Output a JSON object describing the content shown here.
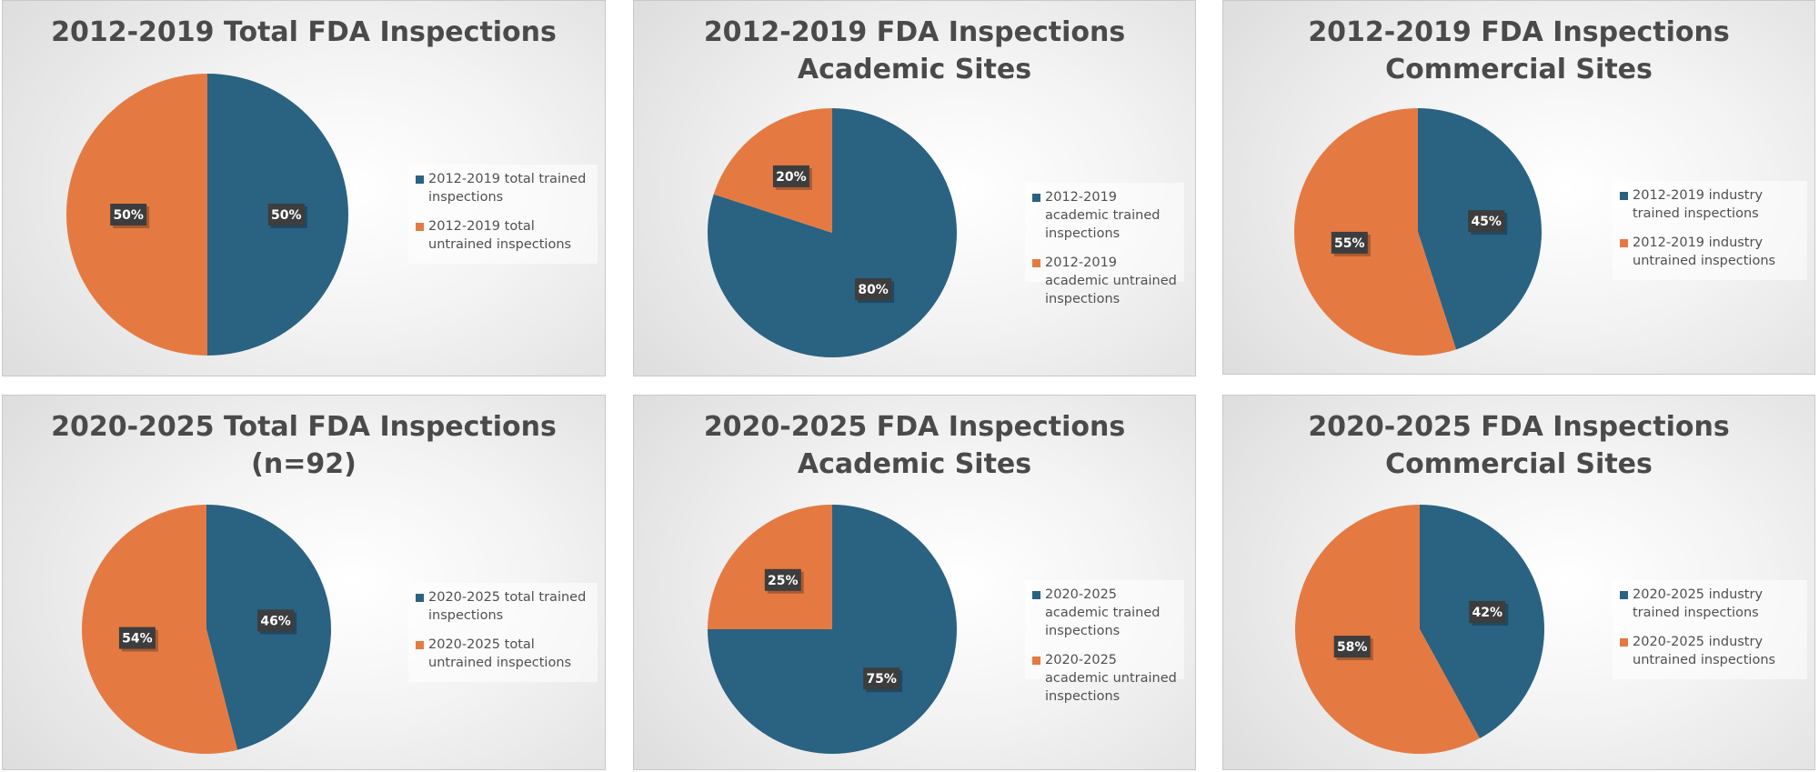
{
  "colors": {
    "trained": "#2a6282",
    "untrained": "#e47a42",
    "label_box": "#3d3d3d",
    "label_text": "#ffffff",
    "title": "#4a4a4a"
  },
  "chart_data": [
    {
      "type": "pie",
      "title": "2012-2019 Total FDA Inspections",
      "slices": [
        {
          "label": "2012-2019 total trained inspections",
          "value": 50,
          "data_label": "50%",
          "color": "#2a6282"
        },
        {
          "label": "2012-2019 total untrained inspections",
          "value": 50,
          "data_label": "50%",
          "color": "#e47a42"
        }
      ],
      "legend_position": "right"
    },
    {
      "type": "pie",
      "title": "2012-2019 FDA Inspections\nAcademic Sites",
      "slices": [
        {
          "label": "2012-2019 academic trained inspections",
          "value": 80,
          "data_label": "80%",
          "color": "#2a6282"
        },
        {
          "label": "2012-2019 academic untrained inspections",
          "value": 20,
          "data_label": "20%",
          "color": "#e47a42"
        }
      ],
      "legend_position": "right"
    },
    {
      "type": "pie",
      "title": "2012-2019 FDA Inspections\nCommercial Sites",
      "slices": [
        {
          "label": "2012-2019 industry trained inspections",
          "value": 45,
          "data_label": "45%",
          "color": "#2a6282"
        },
        {
          "label": "2012-2019 industry untrained inspections",
          "value": 55,
          "data_label": "55%",
          "color": "#e47a42"
        }
      ],
      "legend_position": "right"
    },
    {
      "type": "pie",
      "title": "2020-2025 Total FDA Inspections\n(n=92)",
      "slices": [
        {
          "label": "2020-2025 total trained inspections",
          "value": 46,
          "data_label": "46%",
          "color": "#2a6282"
        },
        {
          "label": "2020-2025 total untrained inspections",
          "value": 54,
          "data_label": "54%",
          "color": "#e47a42"
        }
      ],
      "legend_position": "right"
    },
    {
      "type": "pie",
      "title": "2020-2025 FDA Inspections\nAcademic Sites",
      "slices": [
        {
          "label": "2020-2025 academic trained inspections",
          "value": 75,
          "data_label": "75%",
          "color": "#2a6282"
        },
        {
          "label": "2020-2025 academic untrained inspections",
          "value": 25,
          "data_label": "25%",
          "color": "#e47a42"
        }
      ],
      "legend_position": "right"
    },
    {
      "type": "pie",
      "title": "2020-2025 FDA Inspections\nCommercial Sites",
      "slices": [
        {
          "label": "2020-2025 industry trained inspections",
          "value": 42,
          "data_label": "42%",
          "color": "#2a6282"
        },
        {
          "label": "2020-2025 industry untrained inspections",
          "value": 58,
          "data_label": "58%",
          "color": "#e47a42"
        }
      ],
      "legend_position": "right"
    }
  ]
}
